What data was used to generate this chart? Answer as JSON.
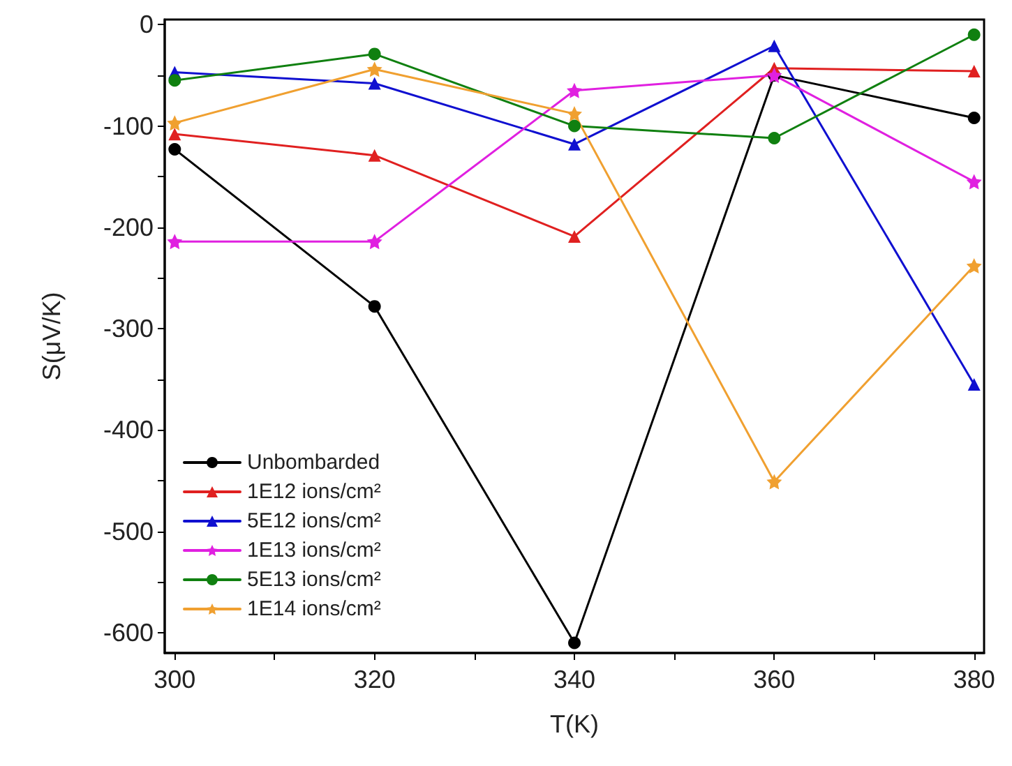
{
  "chart_data": {
    "type": "line",
    "xlabel": "T(K)",
    "ylabel": "S(μV/K)",
    "x": [
      300,
      320,
      340,
      360,
      380
    ],
    "xlim": [
      299,
      381
    ],
    "xticks": [
      300,
      {
        "value": 310,
        "label": null
      },
      320,
      {
        "value": 330,
        "label": null
      },
      340,
      {
        "value": 350,
        "label": null
      },
      360,
      {
        "value": 370,
        "label": null
      },
      380
    ],
    "ylim": [
      -620,
      5
    ],
    "yticks": [
      {
        "value": -600,
        "label": "-600"
      },
      {
        "value": -550,
        "label": null
      },
      {
        "value": -500,
        "label": "-500"
      },
      {
        "value": -450,
        "label": null
      },
      {
        "value": -400,
        "label": "-400"
      },
      {
        "value": -350,
        "label": null
      },
      {
        "value": -300,
        "label": "-300"
      },
      {
        "value": -250,
        "label": null
      },
      {
        "value": -200,
        "label": "-200"
      },
      {
        "value": -150,
        "label": null
      },
      {
        "value": -100,
        "label": "-100"
      },
      {
        "value": -50,
        "label": null
      },
      0
    ],
    "grid": false,
    "legend": "bottom left",
    "line_style": "solid",
    "series": [
      {
        "name": "Unbombarded",
        "color": "#000000",
        "marker": "circle",
        "values": [
          -123,
          -278,
          -610,
          -50,
          -92
        ]
      },
      {
        "name": "1E12 ions/cm²",
        "color": "#e02020",
        "marker": "triangle",
        "values": [
          -108,
          -129,
          -209,
          -43,
          -46
        ]
      },
      {
        "name": "5E12 ions/cm²",
        "color": "#1010d0",
        "marker": "triangle",
        "values": [
          -47,
          -58,
          -118,
          -21,
          -355
        ]
      },
      {
        "name": "1E13 ions/cm²",
        "color": "#e020e0",
        "marker": "star",
        "values": [
          -214,
          -214,
          -65,
          -50,
          -155
        ]
      },
      {
        "name": "5E13 ions/cm²",
        "color": "#108010",
        "marker": "circle",
        "values": [
          -55,
          -29,
          -100,
          -112,
          -10
        ]
      },
      {
        "name": "1E14 ions/cm²",
        "color": "#f0a030",
        "marker": "star",
        "values": [
          -97,
          -44,
          -88,
          -451,
          -238
        ]
      }
    ]
  }
}
